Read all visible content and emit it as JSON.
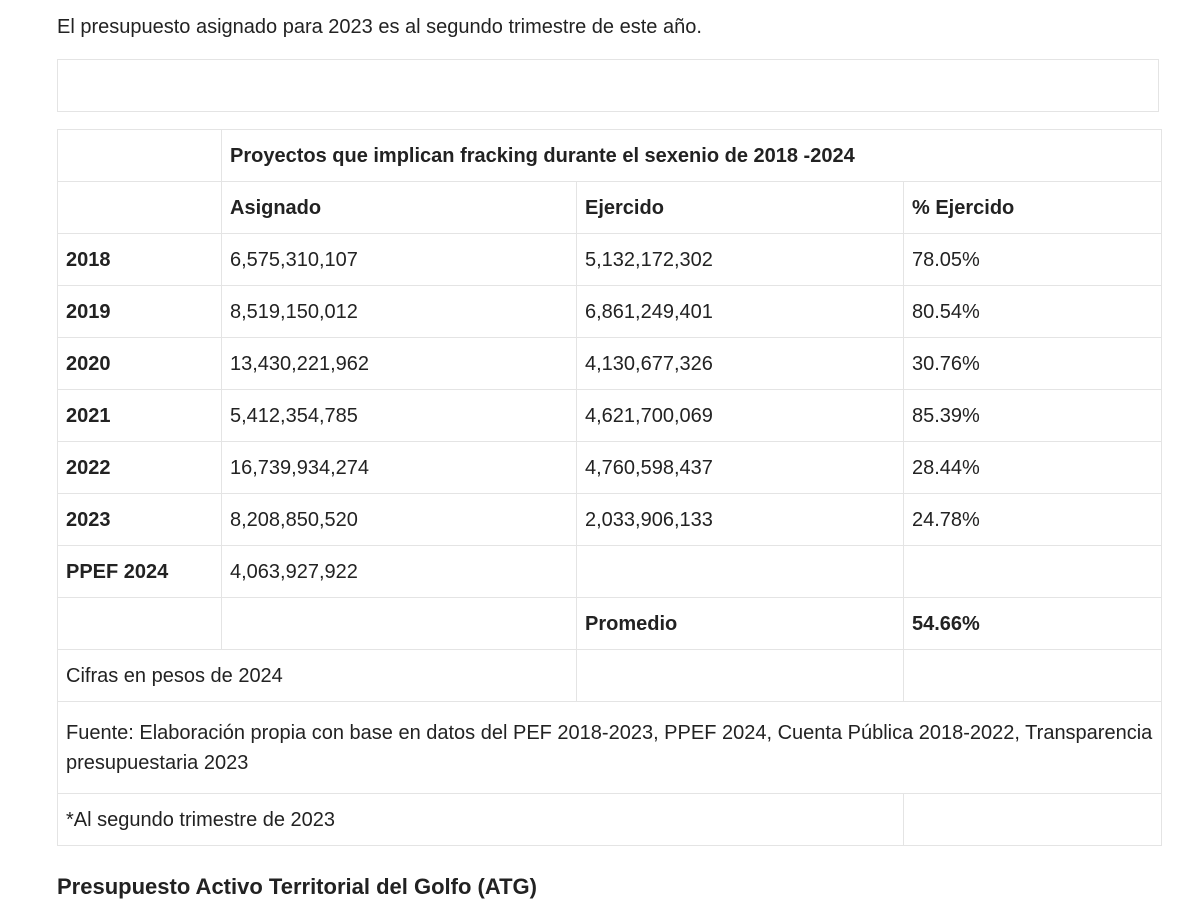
{
  "intro": "El presupuesto asignado para 2023 es al segundo trimestre de este año.",
  "table": {
    "title": "Proyectos que implican fracking durante el sexenio de 2018 -2024",
    "headers": [
      "Asignado",
      "Ejercido",
      "% Ejercido"
    ],
    "rows": [
      {
        "year": "2018",
        "asignado": "6,575,310,107",
        "ejercido": "5,132,172,302",
        "pct": "78.05%"
      },
      {
        "year": "2019",
        "asignado": "8,519,150,012",
        "ejercido": "6,861,249,401",
        "pct": "80.54%"
      },
      {
        "year": "2020",
        "asignado": "13,430,221,962",
        "ejercido": "4,130,677,326",
        "pct": "30.76%"
      },
      {
        "year": "2021",
        "asignado": "5,412,354,785",
        "ejercido": "4,621,700,069",
        "pct": "85.39%"
      },
      {
        "year": "2022",
        "asignado": "16,739,934,274",
        "ejercido": "4,760,598,437",
        "pct": "28.44%"
      },
      {
        "year": "2023",
        "asignado": "8,208,850,520",
        "ejercido": "2,033,906,133",
        "pct": "24.78%"
      },
      {
        "year": "PPEF 2024",
        "asignado": "4,063,927,922",
        "ejercido": "",
        "pct": ""
      }
    ],
    "average_label": "Promedio",
    "average_value": "54.66%",
    "note_units": "Cifras en pesos de 2024",
    "source": "Fuente: Elaboración propia con base en datos del PEF 2018-2023, PPEF 2024, Cuenta Pública 2018-2022, Transparencia presupuestaria 2023",
    "footnote": "*Al segundo trimestre de 2023"
  },
  "next_heading": "Presupuesto Activo Territorial del Golfo (ATG)"
}
